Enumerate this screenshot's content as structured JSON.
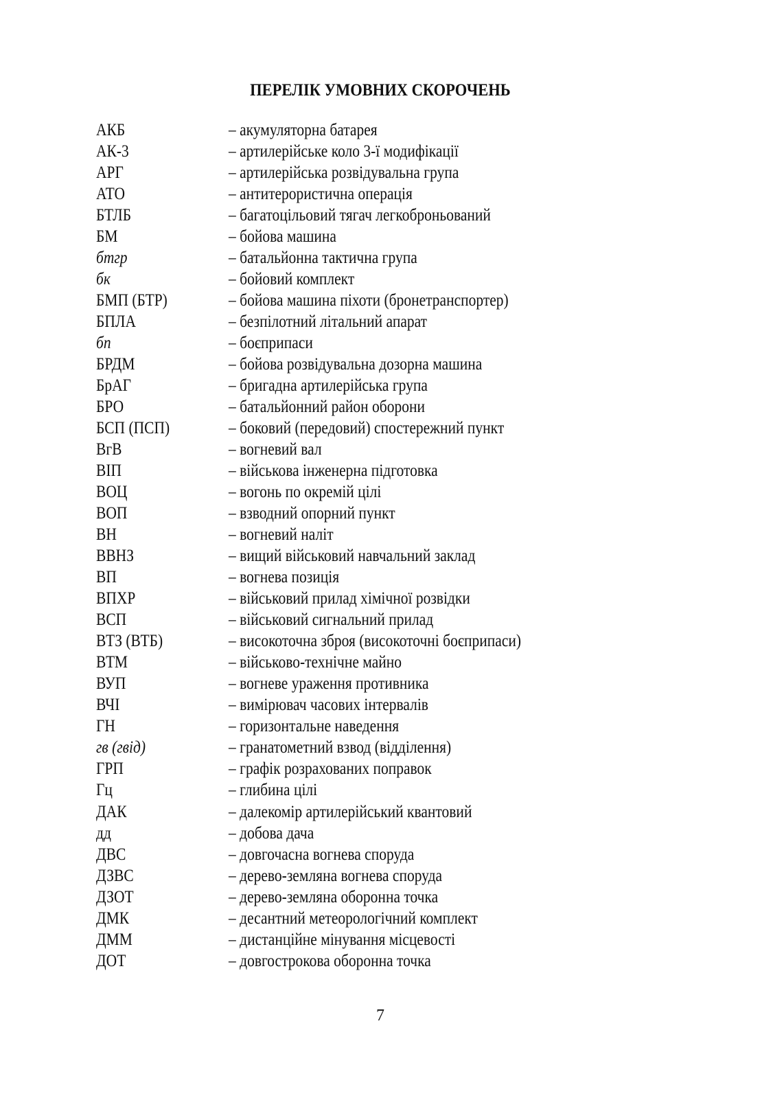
{
  "title": "ПЕРЕЛІК УМОВНИХ СКОРОЧЕНЬ",
  "entries": [
    {
      "abbr": "АКБ",
      "def": "– акумуляторна батарея",
      "italic": false
    },
    {
      "abbr": "АК-3",
      "def": "– артилерійське коло 3-ї модифікації",
      "italic": false
    },
    {
      "abbr": "АРГ",
      "def": "– артилерійська розвідувальна група",
      "italic": false
    },
    {
      "abbr": "АТО",
      "def": "– антитерористична операція",
      "italic": false
    },
    {
      "abbr": "БТЛБ",
      "def": "– багатоцільовий тягач легкоброньований",
      "italic": false
    },
    {
      "abbr": "БМ",
      "def": "– бойова машина",
      "italic": false
    },
    {
      "abbr": "бтгр",
      "def": "– батальйонна тактична група",
      "italic": true
    },
    {
      "abbr": "бк",
      "def": "– бойовий комплект",
      "italic": true
    },
    {
      "abbr": "БМП (БТР)",
      "def": "– бойова машина піхоти (бронетранспортер)",
      "italic": false
    },
    {
      "abbr": "БПЛА",
      "def": "– безпілотний літальний апарат",
      "italic": false
    },
    {
      "abbr": "бп",
      "def": "– боєприпаси",
      "italic": true
    },
    {
      "abbr": "БРДМ",
      "def": "– бойова розвідувальна дозорна машина",
      "italic": false
    },
    {
      "abbr": "БрАГ",
      "def": "– бригадна артилерійська група",
      "italic": false
    },
    {
      "abbr": "БРО",
      "def": "– батальйонний район оборони",
      "italic": false
    },
    {
      "abbr": "БСП (ПСП)",
      "def": "– боковий (передовий) спостережний пункт",
      "italic": false
    },
    {
      "abbr": "ВгВ",
      "def": "– вогневий вал",
      "italic": false
    },
    {
      "abbr": "ВІП",
      "def": "– військова інженерна підготовка",
      "italic": false
    },
    {
      "abbr": "ВОЦ",
      "def": "– вогонь по окремій цілі",
      "italic": false
    },
    {
      "abbr": "ВОП",
      "def": "– взводний опорний пункт",
      "italic": false
    },
    {
      "abbr": "ВН",
      "def": "– вогневий наліт",
      "italic": false
    },
    {
      "abbr": "ВВНЗ",
      "def": "– вищий військовий навчальний заклад",
      "italic": false
    },
    {
      "abbr": "ВП",
      "def": "– вогнева позиція",
      "italic": false
    },
    {
      "abbr": "ВПХР",
      "def": "– військовий прилад хімічної розвідки",
      "italic": false
    },
    {
      "abbr": "ВСП",
      "def": "– військовий сигнальний прилад",
      "italic": false
    },
    {
      "abbr": "ВТЗ (ВТБ)",
      "def": "– високоточна зброя (високоточні боєприпаси)",
      "italic": false
    },
    {
      "abbr": "ВТМ",
      "def": "– військово-технічне майно",
      "italic": false
    },
    {
      "abbr": "ВУП",
      "def": "– вогневе ураження противника",
      "italic": false
    },
    {
      "abbr": "ВЧІ",
      "def": "– вимірювач часових інтервалів",
      "italic": false
    },
    {
      "abbr": "ГН",
      "def": "– горизонтальне наведення",
      "italic": false
    },
    {
      "abbr": "гв (гвід)",
      "def": "– гранатометний взвод (відділення)",
      "italic": true
    },
    {
      "abbr": "ГРП",
      "def": "– графік розрахованих поправок",
      "italic": false
    },
    {
      "abbr": "Гц",
      "def": "– глибина цілі",
      "italic": false
    },
    {
      "abbr": "ДАК",
      "def": "– далекомір артилерійський квантовий",
      "italic": false
    },
    {
      "abbr": "дд",
      "def": "– добова дача",
      "italic": false
    },
    {
      "abbr": "ДВС",
      "def": "– довгочасна вогнева споруда",
      "italic": false
    },
    {
      "abbr": "ДЗВС",
      "def": "– дерево-земляна вогнева споруда",
      "italic": false
    },
    {
      "abbr": "ДЗОТ",
      "def": "– дерево-земляна оборонна точка",
      "italic": false
    },
    {
      "abbr": "ДМК",
      "def": "– десантний метеорологічний комплект",
      "italic": false
    },
    {
      "abbr": "ДММ",
      "def": "– дистанційне мінування місцевості",
      "italic": false
    },
    {
      "abbr": "ДОТ",
      "def": "– довгострокова оборонна точка",
      "italic": false
    }
  ],
  "page_number": "7"
}
